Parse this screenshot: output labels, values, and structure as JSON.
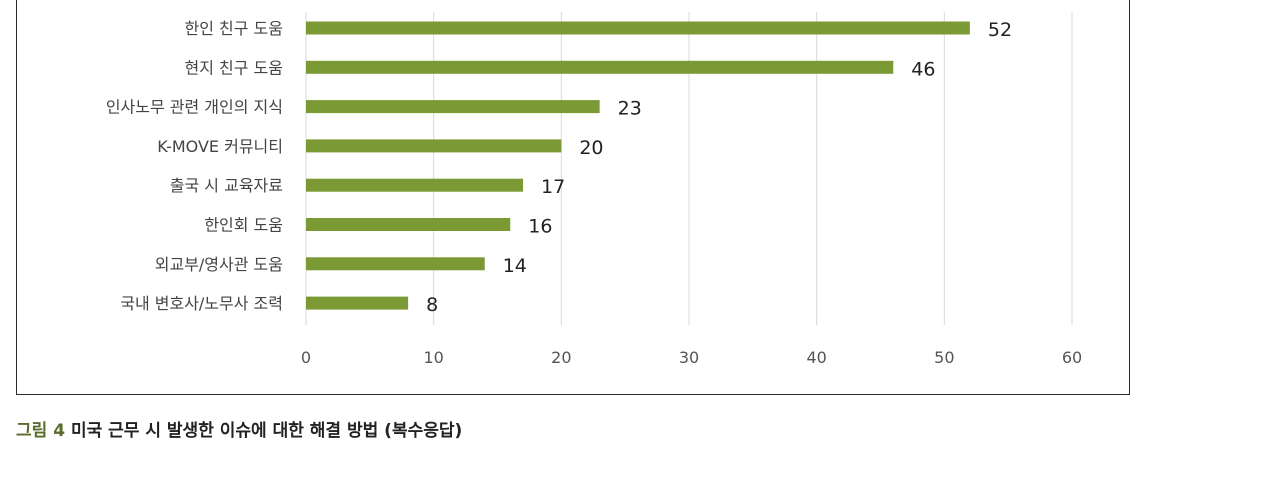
{
  "chart_data": {
    "type": "bar",
    "orientation": "horizontal",
    "categories": [
      "한인 친구 도움",
      "현지 친구 도움",
      "인사노무 관련 개인의 지식",
      "K-MOVE 커뮤니티",
      "출국 시 교육자료",
      "한인회 도움",
      "외교부/영사관 도움",
      "국내 변호사/노무사 조력"
    ],
    "values": [
      52,
      46,
      23,
      20,
      17,
      16,
      14,
      8
    ],
    "x_ticks": [
      0,
      10,
      20,
      30,
      40,
      50,
      60
    ],
    "xlim": [
      0,
      60
    ],
    "bar_color": "#7b9a35",
    "grid": true,
    "data_labels": true
  },
  "caption": {
    "figure_label": "그림 4",
    "title": "미국 근무 시 발생한 이슈에 대한 해결 방법 (복수응답)"
  }
}
